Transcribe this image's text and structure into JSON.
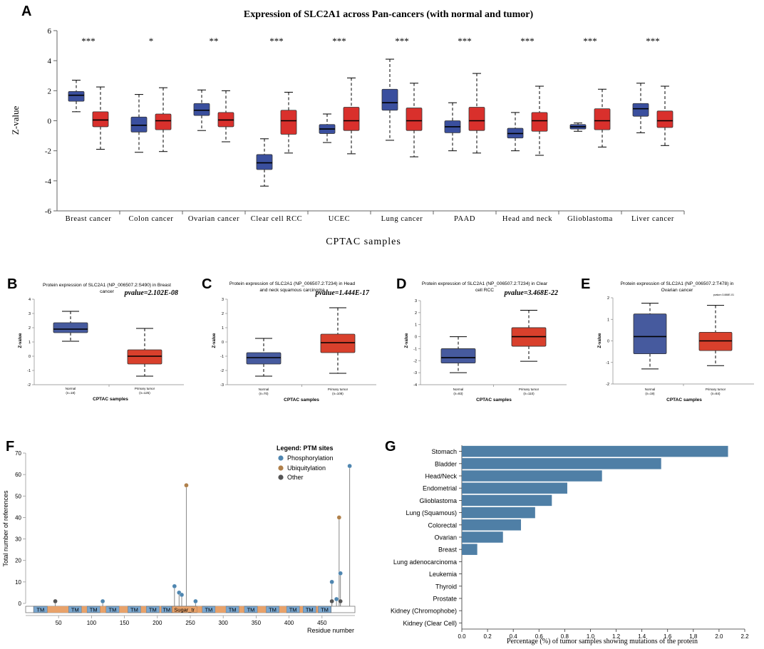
{
  "chart_data": [
    {
      "panel": "A",
      "type": "boxplot",
      "title": "Expression of SLC2A1 across Pan-cancers (with normal and tumor)",
      "xlabel": "CPTAC samples",
      "ylabel": "Z-value",
      "ylim": [
        -6,
        6
      ],
      "yticks": [
        "6",
        "4",
        "2",
        "0",
        "-2",
        "-4",
        "-6"
      ],
      "colors": {
        "normal": "#3a4f9e",
        "tumor": "#d9302c"
      },
      "groups": [
        {
          "name": "Breast cancer",
          "sig": "***",
          "normal": [
            0.6,
            1.3,
            1.7,
            1.95,
            2.7
          ],
          "tumor": [
            -1.9,
            -0.4,
            0.05,
            0.6,
            2.25
          ]
        },
        {
          "name": "Colon cancer",
          "sig": "*",
          "normal": [
            -2.1,
            -0.75,
            -0.3,
            0.25,
            1.75
          ],
          "tumor": [
            -2.05,
            -0.6,
            0.0,
            0.45,
            2.2
          ]
        },
        {
          "name": "Ovarian cancer",
          "sig": "**",
          "normal": [
            -0.65,
            0.35,
            0.7,
            1.15,
            2.05
          ],
          "tumor": [
            -1.4,
            -0.4,
            0.05,
            0.55,
            2.0
          ]
        },
        {
          "name": "Clear cell RCC",
          "sig": "***",
          "normal": [
            -4.35,
            -3.25,
            -2.8,
            -2.25,
            -1.2
          ],
          "tumor": [
            -2.15,
            -0.9,
            0.0,
            0.7,
            1.9
          ]
        },
        {
          "name": "UCEC",
          "sig": "***",
          "normal": [
            -1.45,
            -0.85,
            -0.55,
            -0.25,
            0.45
          ],
          "tumor": [
            -2.2,
            -0.65,
            0.0,
            0.9,
            2.85
          ]
        },
        {
          "name": "Lung cancer",
          "sig": "***",
          "normal": [
            -1.3,
            0.7,
            1.2,
            2.1,
            4.1
          ],
          "tumor": [
            -2.4,
            -0.65,
            0.0,
            0.85,
            2.5
          ]
        },
        {
          "name": "PAAD",
          "sig": "***",
          "normal": [
            -2.0,
            -0.8,
            -0.4,
            0.0,
            1.2
          ],
          "tumor": [
            -2.15,
            -0.65,
            0.0,
            0.9,
            3.15
          ]
        },
        {
          "name": "Head and neck",
          "sig": "***",
          "normal": [
            -2.0,
            -1.15,
            -0.85,
            -0.5,
            0.55
          ],
          "tumor": [
            -2.3,
            -0.7,
            0.0,
            0.55,
            2.3
          ]
        },
        {
          "name": "Glioblastoma",
          "sig": "***",
          "normal": [
            -0.7,
            -0.55,
            -0.4,
            -0.25,
            -0.15
          ],
          "tumor": [
            -1.75,
            -0.6,
            0.0,
            0.8,
            2.1
          ]
        },
        {
          "name": "Liver cancer",
          "sig": "***",
          "normal": [
            -0.8,
            0.3,
            0.8,
            1.15,
            2.5
          ],
          "tumor": [
            -1.65,
            -0.45,
            0.0,
            0.65,
            2.3
          ]
        }
      ]
    },
    {
      "panel": "B",
      "type": "boxplot",
      "title_line1": "Protein expression of SLC2A1 (NP_006507.2:S490) in Breast",
      "title_line2": "cancer",
      "pvalue": "pvalue=2.102E-08",
      "ylim": [
        -2,
        4
      ],
      "yticks": [
        "4",
        "3",
        "2",
        "1",
        "0",
        "-1",
        "-2"
      ],
      "ylabel": "Z-value",
      "xlabel": "CPTAC samples",
      "cat1": "Normal",
      "n1": "(n=18)",
      "cat2": "Primary tumor",
      "n2": "(n=125)",
      "normal": [
        1.05,
        1.65,
        1.9,
        2.35,
        3.15
      ],
      "tumor": [
        -1.4,
        -0.55,
        0.0,
        0.45,
        1.95
      ]
    },
    {
      "panel": "C",
      "type": "boxplot",
      "title_line1": "Protein expression of SLC2A1 (NP_006507.2:T234) in Head",
      "title_line2": "and neck squamous carcinoma",
      "pvalue": "pvalue=1.444E-17",
      "ylim": [
        -3,
        3
      ],
      "yticks": [
        "3",
        "2",
        "1",
        "0",
        "-1",
        "-2",
        "-3"
      ],
      "ylabel": "Z-value",
      "xlabel": "CPTAC samples",
      "cat1": "Normal",
      "n1": "(n=70)",
      "cat2": "Primary tumor",
      "n2": "(n=108)",
      "normal": [
        -2.4,
        -1.55,
        -1.1,
        -0.75,
        0.25
      ],
      "tumor": [
        -2.2,
        -0.75,
        -0.05,
        0.55,
        2.4
      ]
    },
    {
      "panel": "D",
      "type": "boxplot",
      "title_line1": "Protein expression of SLC2A1 (NP_006507.2:T234) in Clear",
      "title_line2": "cell RCC",
      "pvalue": "pvalue=3.468E-22",
      "ylim": [
        -4,
        3
      ],
      "yticks": [
        "3",
        "2",
        "1",
        "0",
        "-1",
        "-2",
        "-3",
        "-4"
      ],
      "ylabel": "Z-value",
      "xlabel": "CPTAC samples",
      "cat1": "Normal",
      "n1": "(n=83)",
      "cat2": "Primary tumor",
      "n2": "(n=110)",
      "normal": [
        -3.0,
        -2.2,
        -1.75,
        -1.0,
        0.0
      ],
      "tumor": [
        -2.05,
        -0.8,
        0.0,
        0.75,
        2.2
      ]
    },
    {
      "panel": "E",
      "type": "boxplot",
      "title_line1": "Protein expression of SLC2A1 (NP_006507.2:T478) in",
      "title_line2": "Ovarian cancer",
      "pvalue": "pvalue=3.888E-01",
      "ylim": [
        -2,
        2
      ],
      "yticks": [
        "2",
        "1",
        "0",
        "-1",
        "-2"
      ],
      "ylabel": "Z-value",
      "xlabel": "CPTAC samples",
      "cat1": "Normal",
      "n1": "(n=19)",
      "cat2": "Primary tumor",
      "n2": "(n=84)",
      "normal": [
        -1.3,
        -0.6,
        0.2,
        1.25,
        1.75
      ],
      "tumor": [
        -1.15,
        -0.45,
        0.0,
        0.4,
        1.65
      ]
    },
    {
      "panel": "F",
      "type": "lollipop",
      "ylabel": "Total number of references",
      "xlabel": "Residue number",
      "ylim": [
        0,
        70
      ],
      "xlim": [
        0,
        500
      ],
      "yticks": [
        0,
        10,
        20,
        30,
        40,
        50,
        60,
        70
      ],
      "xticks": [
        50,
        100,
        150,
        200,
        250,
        300,
        350,
        400,
        450
      ],
      "legend_title": "Legend: PTM sites",
      "legend": [
        {
          "label": "Phosphorylation",
          "color": "#4f86b0"
        },
        {
          "label": "Ubiquitylation",
          "color": "#b0804a"
        },
        {
          "label": "Other",
          "color": "#555555"
        }
      ],
      "points": [
        {
          "x": 45,
          "y": 1,
          "kind": "Other"
        },
        {
          "x": 117,
          "y": 1,
          "kind": "Phosphorylation"
        },
        {
          "x": 226,
          "y": 8,
          "kind": "Phosphorylation"
        },
        {
          "x": 233,
          "y": 5,
          "kind": "Phosphorylation"
        },
        {
          "x": 237,
          "y": 4,
          "kind": "Phosphorylation"
        },
        {
          "x": 244,
          "y": 55,
          "kind": "Ubiquitylation"
        },
        {
          "x": 258,
          "y": 1,
          "kind": "Phosphorylation"
        },
        {
          "x": 465,
          "y": 10,
          "kind": "Phosphorylation"
        },
        {
          "x": 465,
          "y": 1,
          "kind": "Other"
        },
        {
          "x": 472,
          "y": 2,
          "kind": "Phosphorylation"
        },
        {
          "x": 476,
          "y": 40,
          "kind": "Ubiquitylation"
        },
        {
          "x": 478,
          "y": 14,
          "kind": "Phosphorylation"
        },
        {
          "x": 478,
          "y": 1,
          "kind": "Other"
        },
        {
          "x": 492,
          "y": 64,
          "kind": "Phosphorylation"
        }
      ],
      "domains": [
        {
          "label": "TM",
          "start": 12,
          "end": 33
        },
        {
          "label": "TM",
          "start": 65,
          "end": 85
        },
        {
          "label": "TM",
          "start": 93,
          "end": 113
        },
        {
          "label": "TM",
          "start": 122,
          "end": 142
        },
        {
          "label": "TM",
          "start": 155,
          "end": 175
        },
        {
          "label": "TM",
          "start": 183,
          "end": 203
        },
        {
          "label": "TM",
          "start": 206,
          "end": 222
        },
        {
          "label": "Sugar_tr",
          "start": 222,
          "end": 260
        },
        {
          "label": "TM",
          "start": 268,
          "end": 288
        },
        {
          "label": "TM",
          "start": 304,
          "end": 324
        },
        {
          "label": "TM",
          "start": 332,
          "end": 352
        },
        {
          "label": "TM",
          "start": 365,
          "end": 385
        },
        {
          "label": "TM",
          "start": 396,
          "end": 416
        },
        {
          "label": "TM",
          "start": 421,
          "end": 441
        },
        {
          "label": "TM",
          "start": 444,
          "end": 464
        }
      ]
    },
    {
      "panel": "G",
      "type": "bar",
      "orientation": "horizontal",
      "xlabel": "Percentage (%) of tumor samples showing mutations of the protein",
      "xlim": [
        0,
        2.2
      ],
      "xticks": [
        "0.0",
        "0.2",
        "0.4",
        "0.6",
        "0.8",
        "1.0",
        "1.2",
        "1.4",
        "1.6",
        "1.8",
        "2.0",
        "2.2"
      ],
      "color": "#4f7fa6",
      "categories": [
        "Stomach",
        "Bladder",
        "Head/Neck",
        "Endometrial",
        "Glioblastoma",
        "Lung (Squamous)",
        "Colorectal",
        "Ovarian",
        "Breast",
        "Lung adenocarcinoma",
        "Leukemia",
        "Thyroid",
        "Prostate",
        "Kidney (Chromophobe)",
        "Kidney (Clear Cell)"
      ],
      "values": [
        2.07,
        1.55,
        1.09,
        0.82,
        0.7,
        0.57,
        0.46,
        0.32,
        0.12,
        0,
        0,
        0,
        0,
        0,
        0
      ]
    }
  ],
  "panel_letters": [
    "A",
    "B",
    "C",
    "D",
    "E",
    "F",
    "G"
  ]
}
